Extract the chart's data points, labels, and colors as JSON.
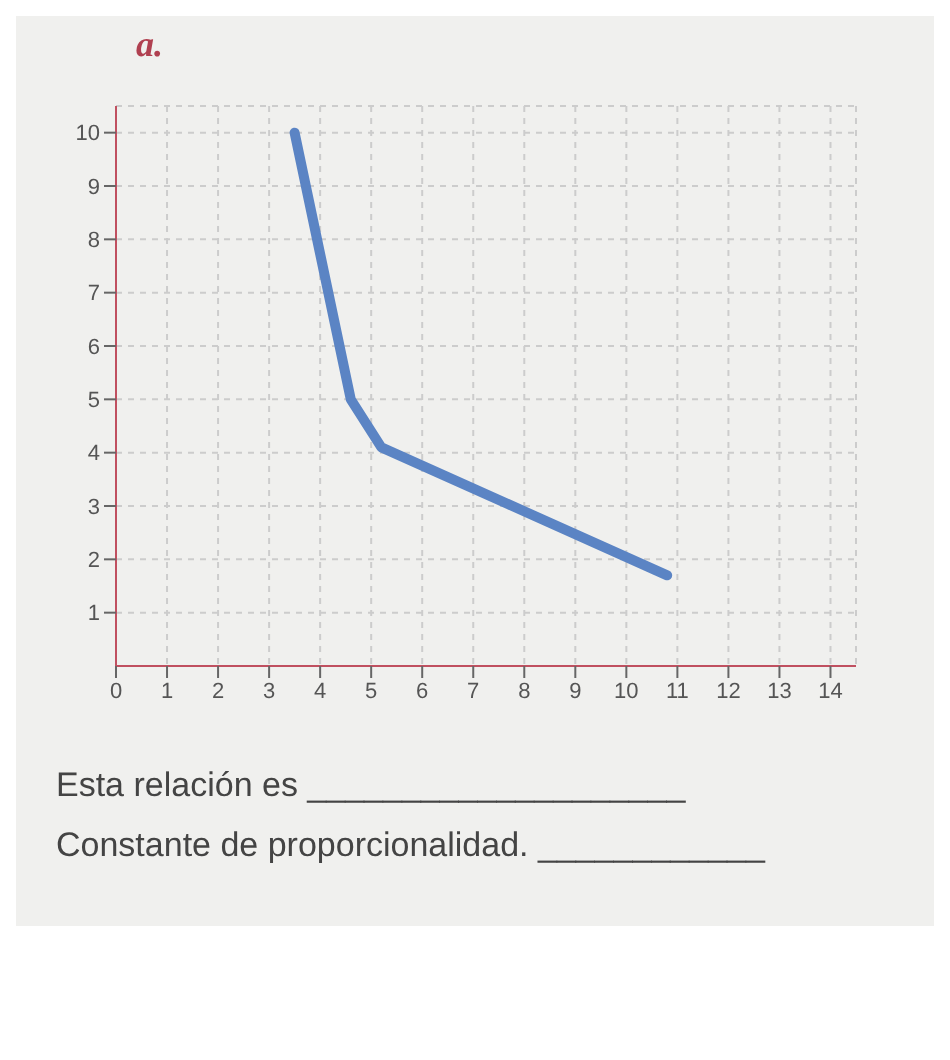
{
  "chart_data": {
    "type": "line",
    "title": "a.",
    "x": [
      3.5,
      4.6,
      5.2,
      10.8
    ],
    "series": [
      {
        "color": "#5b84c4",
        "values": [
          10,
          5,
          4.1,
          1.7
        ]
      }
    ],
    "xlim": [
      0,
      14.5
    ],
    "ylim": [
      0,
      10.5
    ],
    "xticks": [
      0,
      1,
      2,
      3,
      4,
      5,
      6,
      7,
      8,
      9,
      10,
      11,
      12,
      13,
      14
    ],
    "yticks": [
      1,
      2,
      3,
      4,
      5,
      6,
      7,
      8,
      9,
      10
    ],
    "grid": true,
    "marker": "none",
    "line_style": "solid",
    "annotations": [
      "Esta relación es ____________________",
      "Constante de proporcionalidad. ____________"
    ]
  }
}
